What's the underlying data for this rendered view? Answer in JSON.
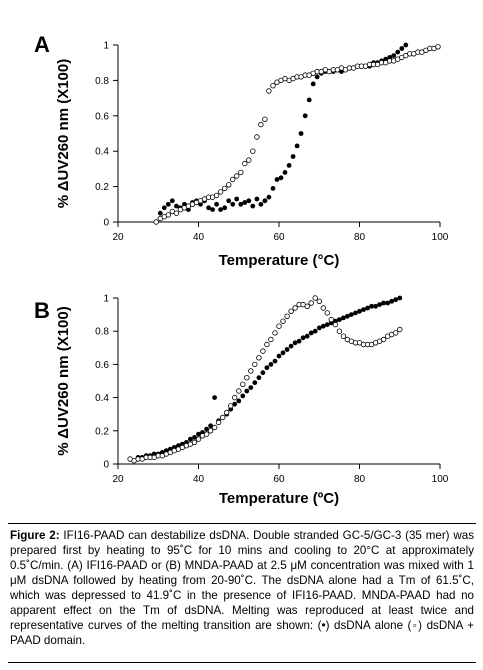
{
  "chart_data": [
    {
      "type": "scatter",
      "panel_label": "A",
      "xlabel": "Temperature (°C)",
      "ylabel": "% ΔUV260 nm (X100)",
      "xlim": [
        20,
        100
      ],
      "ylim": [
        0,
        1
      ],
      "xticks": [
        "20",
        "40",
        "60",
        "80",
        "100"
      ],
      "yticks": [
        "0",
        "0.2",
        "0.4",
        "0.6",
        "0.8",
        "1"
      ],
      "grid": false,
      "series": [
        {
          "marker": "filled",
          "x": [
            30.5,
            31.5,
            32.5,
            33.5,
            34.5,
            35.5,
            36.5,
            37.5,
            38.5,
            39.5,
            40.5,
            41.5,
            42.5,
            43.5,
            44.5,
            45.5,
            46.5,
            47.5,
            48.5,
            49.5,
            50.5,
            51.5,
            52.5,
            53.5,
            54.5,
            55.5,
            56.5,
            57.5,
            58.5,
            59.5,
            60.5,
            61.5,
            62.5,
            63.5,
            64.5,
            65.5,
            66.5,
            67.5,
            68.5,
            69.5,
            70.5,
            71.5,
            72.5,
            73.5,
            74.5,
            75.5,
            76.5,
            77.5,
            78.5,
            79.5,
            80.5,
            81.5,
            82.5,
            83.5,
            84.5,
            85.5,
            86.5,
            87.5,
            88.5,
            89.5,
            90.5,
            91.5
          ],
          "y": [
            0.05,
            0.08,
            0.1,
            0.12,
            0.09,
            0.08,
            0.1,
            0.07,
            0.11,
            0.12,
            0.1,
            0.12,
            0.08,
            0.07,
            0.1,
            0.07,
            0.08,
            0.12,
            0.1,
            0.13,
            0.1,
            0.11,
            0.12,
            0.09,
            0.13,
            0.1,
            0.12,
            0.14,
            0.19,
            0.24,
            0.25,
            0.28,
            0.32,
            0.37,
            0.43,
            0.5,
            0.6,
            0.69,
            0.78,
            0.82,
            0.84,
            0.85,
            0.85,
            0.85,
            0.86,
            0.85,
            0.86,
            0.87,
            0.87,
            0.88,
            0.88,
            0.88,
            0.88,
            0.9,
            0.9,
            0.91,
            0.92,
            0.93,
            0.94,
            0.96,
            0.98,
            1.0
          ]
        },
        {
          "marker": "open",
          "x": [
            29.5,
            30.5,
            31.5,
            32.5,
            33.5,
            34.5,
            35.5,
            36.5,
            37.5,
            38.5,
            39.5,
            40.5,
            41.5,
            42.5,
            43.5,
            44.5,
            45.5,
            46.5,
            47.5,
            48.5,
            49.5,
            50.5,
            51.5,
            52.5,
            53.5,
            54.5,
            55.5,
            56.5,
            57.5,
            58.5,
            59.5,
            60.5,
            61.5,
            62.5,
            63.5,
            64.5,
            65.5,
            66.5,
            67.5,
            68.5,
            69.5,
            70.5,
            71.5,
            72.5,
            73.5,
            74.5,
            75.5,
            76.5,
            77.5,
            78.5,
            79.5,
            80.5,
            81.5,
            82.5,
            83.5,
            84.5,
            85.5,
            86.5,
            87.5,
            88.5,
            89.5,
            90.5,
            91.5,
            92.5,
            93.5,
            94.5,
            95.5,
            96.5,
            97.5,
            98.5,
            99.5
          ],
          "y": [
            0.0,
            0.02,
            0.03,
            0.04,
            0.06,
            0.05,
            0.07,
            0.08,
            0.09,
            0.1,
            0.11,
            0.12,
            0.13,
            0.14,
            0.14,
            0.15,
            0.17,
            0.19,
            0.21,
            0.24,
            0.26,
            0.28,
            0.33,
            0.35,
            0.4,
            0.48,
            0.55,
            0.58,
            0.74,
            0.77,
            0.79,
            0.8,
            0.81,
            0.8,
            0.81,
            0.82,
            0.82,
            0.83,
            0.83,
            0.84,
            0.85,
            0.85,
            0.86,
            0.85,
            0.86,
            0.86,
            0.87,
            0.86,
            0.87,
            0.87,
            0.88,
            0.88,
            0.88,
            0.89,
            0.89,
            0.89,
            0.9,
            0.9,
            0.91,
            0.91,
            0.92,
            0.93,
            0.94,
            0.95,
            0.95,
            0.96,
            0.96,
            0.97,
            0.98,
            0.98,
            0.99
          ]
        }
      ]
    },
    {
      "type": "scatter",
      "panel_label": "B",
      "xlabel": "Temperature (ºC)",
      "ylabel": "% ΔUV260 nm (X100)",
      "xlim": [
        20,
        100
      ],
      "ylim": [
        0,
        1
      ],
      "xticks": [
        "20",
        "40",
        "60",
        "80",
        "100"
      ],
      "yticks": [
        "0",
        "0.2",
        "0.4",
        "0.6",
        "0.8",
        "1"
      ],
      "grid": false,
      "series": [
        {
          "marker": "filled",
          "x": [
            25,
            26,
            27,
            28,
            29,
            30,
            31,
            32,
            33,
            34,
            35,
            36,
            37,
            38,
            39,
            40,
            41,
            42,
            43,
            44,
            45,
            46,
            47,
            48,
            49,
            50,
            51,
            52,
            53,
            54,
            55,
            56,
            57,
            58,
            59,
            60,
            61,
            62,
            63,
            64,
            65,
            66,
            67,
            68,
            69,
            70,
            71,
            72,
            73,
            74,
            75,
            76,
            77,
            78,
            79,
            80,
            81,
            82,
            83,
            84,
            85,
            86,
            87,
            88,
            89,
            90
          ],
          "y": [
            0.04,
            0.04,
            0.05,
            0.05,
            0.06,
            0.06,
            0.07,
            0.08,
            0.09,
            0.1,
            0.11,
            0.12,
            0.13,
            0.15,
            0.16,
            0.18,
            0.19,
            0.21,
            0.23,
            0.4,
            0.26,
            0.28,
            0.3,
            0.33,
            0.36,
            0.38,
            0.41,
            0.44,
            0.46,
            0.49,
            0.52,
            0.55,
            0.58,
            0.6,
            0.62,
            0.65,
            0.67,
            0.69,
            0.71,
            0.73,
            0.74,
            0.76,
            0.77,
            0.79,
            0.8,
            0.82,
            0.83,
            0.84,
            0.85,
            0.86,
            0.87,
            0.88,
            0.89,
            0.9,
            0.91,
            0.92,
            0.93,
            0.94,
            0.95,
            0.95,
            0.96,
            0.97,
            0.97,
            0.98,
            0.99,
            1.0
          ]
        },
        {
          "marker": "open",
          "x": [
            23,
            24,
            25,
            26,
            27,
            28,
            29,
            30,
            31,
            32,
            33,
            34,
            35,
            36,
            37,
            38,
            39,
            40,
            41,
            42,
            43,
            44,
            45,
            46,
            47,
            48,
            49,
            50,
            51,
            52,
            53,
            54,
            55,
            56,
            57,
            58,
            59,
            60,
            61,
            62,
            63,
            64,
            65,
            66,
            67,
            68,
            69,
            70,
            71,
            72,
            73,
            74,
            75,
            76,
            77,
            78,
            79,
            80,
            81,
            82,
            83,
            84,
            85,
            86,
            87,
            88,
            89,
            90
          ],
          "y": [
            0.03,
            0.02,
            0.03,
            0.03,
            0.04,
            0.04,
            0.04,
            0.05,
            0.05,
            0.06,
            0.07,
            0.08,
            0.09,
            0.1,
            0.11,
            0.12,
            0.13,
            0.15,
            0.17,
            0.18,
            0.2,
            0.22,
            0.25,
            0.28,
            0.31,
            0.35,
            0.4,
            0.44,
            0.48,
            0.52,
            0.56,
            0.6,
            0.64,
            0.68,
            0.72,
            0.75,
            0.79,
            0.83,
            0.86,
            0.89,
            0.92,
            0.94,
            0.96,
            0.96,
            0.95,
            0.97,
            1.0,
            0.98,
            0.94,
            0.91,
            0.87,
            0.84,
            0.8,
            0.77,
            0.75,
            0.74,
            0.73,
            0.73,
            0.72,
            0.72,
            0.72,
            0.73,
            0.74,
            0.75,
            0.77,
            0.78,
            0.79,
            0.81
          ]
        }
      ]
    }
  ],
  "caption": {
    "label": "Figure 2:",
    "text": "IFI16-PAAD can destabilize dsDNA. Double stranded GC-5/GC-3 (35 mer) was prepared first by heating to 95˚C for 10 mins and cooling to 20°C at approximately 0.5˚C/min. (A) IFI16-PAAD or (B) MNDA-PAAD at 2.5 μM concentration was mixed with 1 μM dsDNA followed by heating from 20-90˚C. The dsDNA alone had a Tm of 61.5˚C, which was depressed to 41.9˚C in the presence of IFI16-PAAD. MNDA-PAAD had no apparent effect on the Tm of dsDNA. Melting was reproduced at least twice and representative curves of the melting transition are shown: (•) dsDNA alone (◦) dsDNA + PAAD domain."
  }
}
